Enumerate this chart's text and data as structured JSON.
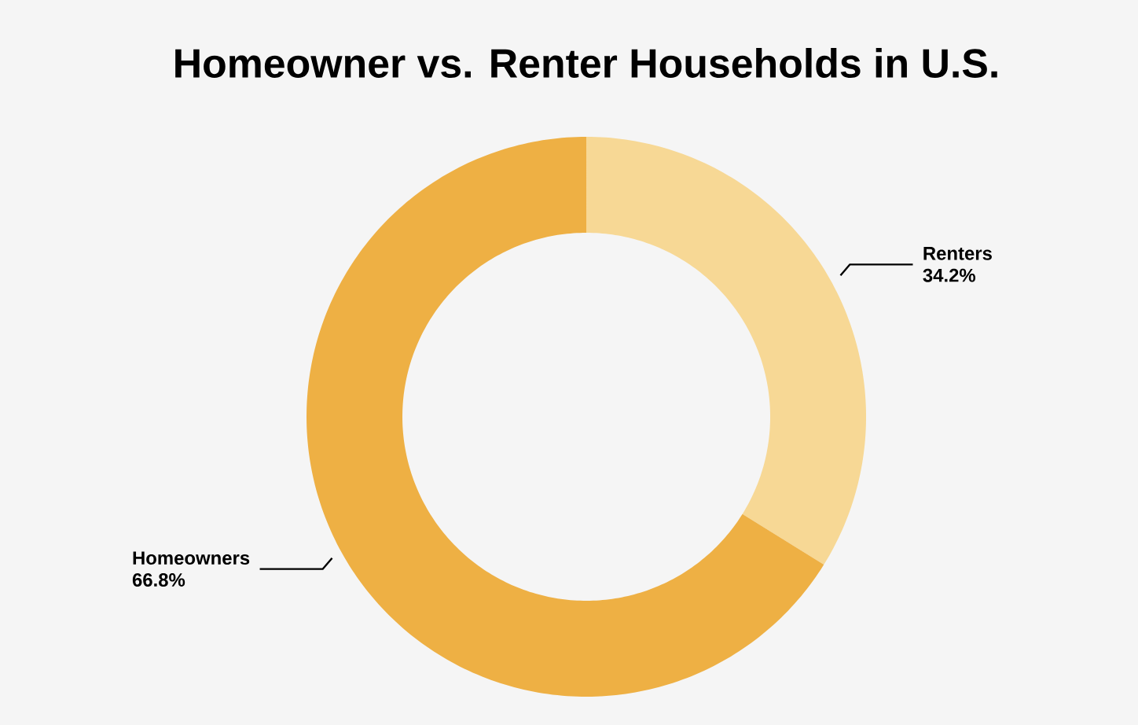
{
  "chart_data": {
    "type": "donut",
    "title": "Homeowner vs. Renter Households in U.S.",
    "categories": [
      "Renters",
      "Homeowners"
    ],
    "values": [
      34.2,
      66.8
    ],
    "value_labels": [
      "34.2%",
      "66.8%"
    ],
    "colors": [
      "#f7d895",
      "#eeb044"
    ]
  }
}
